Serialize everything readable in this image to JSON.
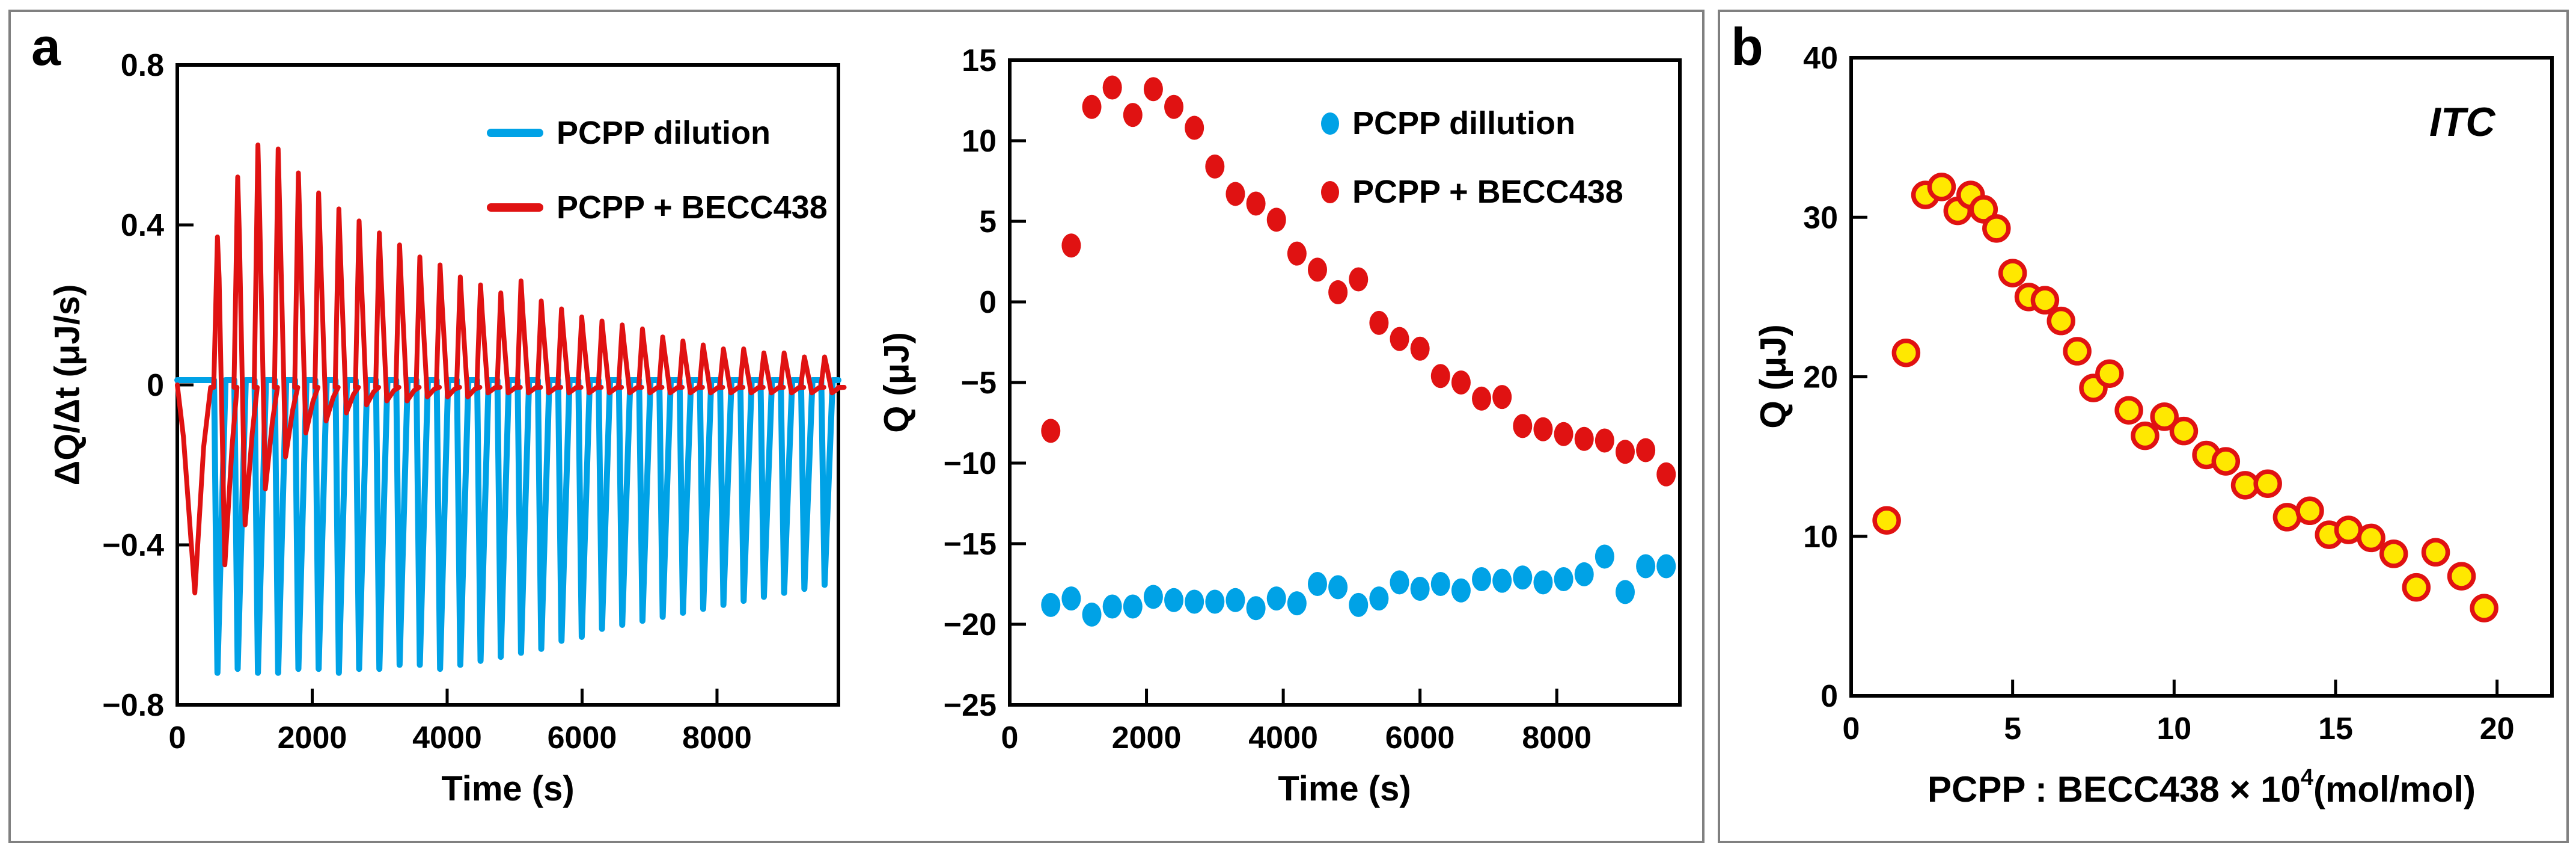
{
  "figure": {
    "type": "scientific-figure",
    "background": "#FFFFFF"
  },
  "colors": {
    "blue": "#00A2E6",
    "red": "#E01212",
    "yellow": "#FFE800",
    "axis": "#000000",
    "panel_border": "#808080"
  },
  "panels": {
    "a": {
      "letter": "a"
    },
    "b": {
      "letter": "b"
    }
  },
  "chart_data": [
    {
      "id": "thermogram",
      "type": "line",
      "xlabel": "Time (s)",
      "ylabel": "ΔQ/Δt (μJ/s)",
      "xlim": [
        0,
        9800
      ],
      "ylim": [
        -0.8,
        0.8
      ],
      "xticks": [
        0,
        2000,
        4000,
        6000,
        8000
      ],
      "xtick_labels": [
        "0",
        "2000",
        "4000",
        "6000",
        "8000"
      ],
      "yticks": [
        0.8,
        0.4,
        0,
        -0.4,
        -0.8
      ],
      "ytick_labels": [
        "0.8",
        "0.4",
        "0",
        "−0.4",
        "−0.8"
      ],
      "legend_position": "top-right",
      "grid": false,
      "series": [
        {
          "name": "PCPP dilution",
          "color": "#00A2E6",
          "baseline": 0.012,
          "injection_times_s": [
            600,
            900,
            1200,
            1500,
            1800,
            2100,
            2400,
            2700,
            3000,
            3300,
            3600,
            3900,
            4200,
            4500,
            4800,
            5100,
            5400,
            5700,
            6000,
            6300,
            6600,
            6900,
            7200,
            7500,
            7800,
            8100,
            8400,
            8700,
            9000,
            9300,
            9600
          ],
          "spike_peaks_uJ_per_s": [
            -0.72,
            -0.71,
            -0.72,
            -0.72,
            -0.71,
            -0.71,
            -0.72,
            -0.71,
            -0.71,
            -0.7,
            -0.7,
            -0.71,
            -0.7,
            -0.69,
            -0.68,
            -0.67,
            -0.66,
            -0.64,
            -0.63,
            -0.61,
            -0.6,
            -0.59,
            -0.58,
            -0.57,
            -0.56,
            -0.55,
            -0.54,
            -0.53,
            -0.52,
            -0.51,
            -0.5
          ]
        },
        {
          "name": "PCPP + BECC438",
          "color": "#E01212",
          "baseline": -0.006,
          "initial_dip": {
            "time_s": 260,
            "value_uJ_per_s": -0.52
          },
          "injection_times_s": [
            600,
            900,
            1200,
            1500,
            1800,
            2100,
            2400,
            2700,
            3000,
            3300,
            3600,
            3900,
            4200,
            4500,
            4800,
            5100,
            5400,
            5700,
            6000,
            6300,
            6600,
            6900,
            7200,
            7500,
            7800,
            8100,
            8400,
            8700,
            9000,
            9300,
            9600
          ],
          "spike_peaks_uJ_per_s": [
            0.37,
            0.52,
            0.6,
            0.59,
            0.53,
            0.48,
            0.44,
            0.41,
            0.38,
            0.35,
            0.32,
            0.3,
            0.27,
            0.25,
            0.23,
            0.26,
            0.21,
            0.19,
            0.17,
            0.16,
            0.15,
            0.14,
            0.12,
            0.11,
            0.1,
            0.09,
            0.09,
            0.08,
            0.08,
            0.07,
            0.07
          ],
          "spike_undershoots_uJ_per_s": [
            -0.45,
            -0.35,
            -0.26,
            -0.18,
            -0.12,
            -0.09,
            -0.07,
            -0.05,
            -0.04,
            -0.04,
            -0.03,
            -0.03,
            -0.03,
            -0.02,
            -0.02,
            -0.02,
            -0.02,
            -0.02,
            -0.02,
            -0.02,
            -0.02,
            -0.02,
            -0.02,
            -0.02,
            -0.02,
            -0.02,
            -0.02,
            -0.02,
            -0.02,
            -0.02,
            -0.02
          ]
        }
      ]
    },
    {
      "id": "q-vs-time",
      "type": "scatter",
      "xlabel": "Time (s)",
      "ylabel": "Q (μJ)",
      "xlim": [
        0,
        9800
      ],
      "ylim": [
        -25,
        15
      ],
      "xticks": [
        0,
        2000,
        4000,
        6000,
        8000
      ],
      "xtick_labels": [
        "0",
        "2000",
        "4000",
        "6000",
        "8000"
      ],
      "yticks": [
        15,
        10,
        5,
        0,
        -5,
        -10,
        -15,
        -20,
        -25
      ],
      "ytick_labels": [
        "15",
        "10",
        "5",
        "0",
        "−5",
        "−10",
        "−15",
        "−20",
        "−25"
      ],
      "legend_position": "top-right",
      "grid": false,
      "series": [
        {
          "name": "PCPP dillution",
          "color": "#00A2E6",
          "x": [
            600,
            900,
            1200,
            1500,
            1800,
            2100,
            2400,
            2700,
            3000,
            3300,
            3600,
            3900,
            4200,
            4500,
            4800,
            5100,
            5400,
            5700,
            6000,
            6300,
            6600,
            6900,
            7200,
            7500,
            7800,
            8100,
            8400,
            8700,
            9000,
            9300,
            9600
          ],
          "y": [
            -18.8,
            -18.4,
            -19.4,
            -18.9,
            -18.9,
            -18.3,
            -18.5,
            -18.6,
            -18.6,
            -18.5,
            -19,
            -18.4,
            -18.7,
            -17.5,
            -17.7,
            -18.8,
            -18.4,
            -17.4,
            -17.8,
            -17.5,
            -17.9,
            -17.2,
            -17.3,
            -17.1,
            -17.4,
            -17.2,
            -16.9,
            -15.8,
            -18,
            -16.4,
            -16.4
          ]
        },
        {
          "name": "PCPP + BECC438",
          "color": "#E01212",
          "x": [
            600,
            900,
            1200,
            1500,
            1800,
            2100,
            2400,
            2700,
            3000,
            3300,
            3600,
            3900,
            4200,
            4500,
            4800,
            5100,
            5400,
            5700,
            6000,
            6300,
            6600,
            6900,
            7200,
            7500,
            7800,
            8100,
            8400,
            8700,
            9000,
            9300,
            9600
          ],
          "y": [
            -8,
            3.5,
            12.1,
            13.3,
            11.6,
            13.2,
            12.1,
            10.8,
            8.4,
            6.7,
            6.1,
            5.1,
            3,
            2,
            0.6,
            1.4,
            -1.3,
            -2.3,
            -2.9,
            -4.6,
            -5,
            -6,
            -5.9,
            -7.7,
            -7.9,
            -8.2,
            -8.5,
            -8.6,
            -9.3,
            -9.2,
            -10.7
          ]
        }
      ]
    },
    {
      "id": "itc-binding-isotherm",
      "type": "scatter",
      "annotation": "ITC",
      "xlabel_prefix": "PCPP : BECC438 × 10",
      "xlabel_sup": "4",
      "xlabel_suffix": "(mol/mol)",
      "ylabel": "Q (μJ)",
      "xlim": [
        0,
        21.7
      ],
      "ylim": [
        0,
        40
      ],
      "xticks": [
        0,
        5,
        10,
        15,
        20
      ],
      "xtick_labels": [
        "0",
        "5",
        "10",
        "15",
        "20"
      ],
      "yticks": [
        40,
        30,
        20,
        10,
        0
      ],
      "ytick_labels": [
        "40",
        "30",
        "20",
        "10",
        "0"
      ],
      "grid": false,
      "series": [
        {
          "marker_fill": "#FFE800",
          "marker_stroke": "#E01212",
          "x": [
            1.1,
            1.7,
            2.3,
            2.8,
            3.3,
            3.7,
            4.1,
            4.5,
            5,
            5.5,
            6,
            6.5,
            7,
            7.5,
            8,
            8.6,
            9.1,
            9.7,
            10.3,
            11,
            11.6,
            12.2,
            12.9,
            13.5,
            14.2,
            14.8,
            15.4,
            16.1,
            16.8,
            17.5,
            18.1,
            18.9,
            19.6
          ],
          "y": [
            11,
            21.5,
            31.4,
            31.9,
            30.4,
            31.4,
            30.5,
            29.3,
            26.5,
            25,
            24.8,
            23.5,
            21.6,
            19.3,
            20.2,
            17.9,
            16.3,
            17.5,
            16.6,
            15.1,
            14.7,
            13.2,
            13.3,
            11.2,
            11.6,
            10.1,
            10.4,
            9.9,
            8.9,
            6.8,
            9,
            7.5,
            5.5
          ]
        }
      ]
    }
  ]
}
